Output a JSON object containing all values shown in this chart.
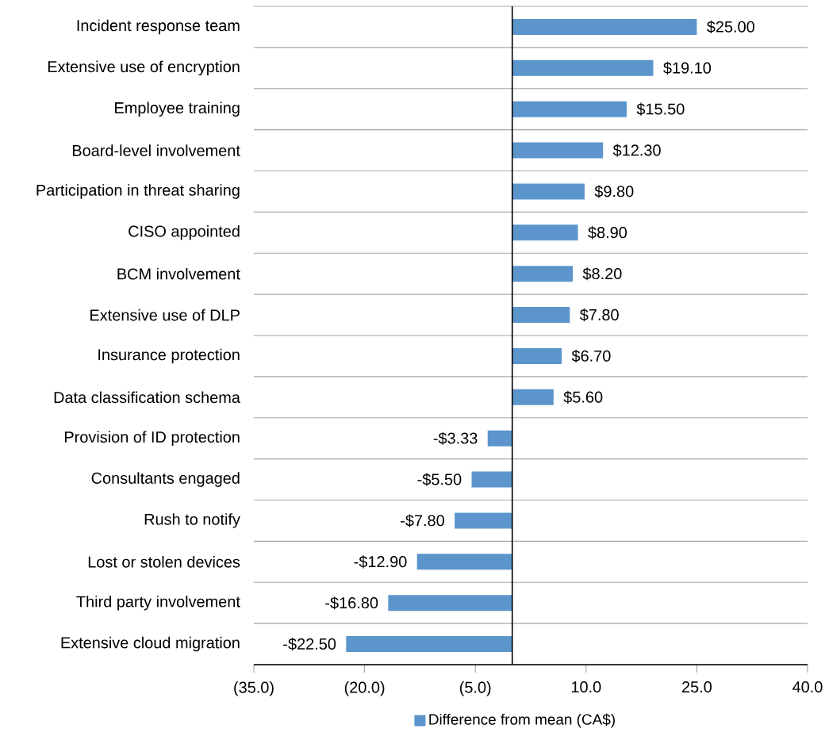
{
  "chart_data": {
    "type": "bar",
    "orientation": "horizontal",
    "categories": [
      "Incident response team",
      "Extensive use of encryption",
      "Employee training",
      "Board-level involvement",
      "Participation in threat sharing",
      "CISO appointed",
      "BCM involvement",
      "Extensive use of DLP",
      "Insurance protection",
      "Data classification schema",
      "Provision of ID protection",
      "Consultants engaged",
      "Rush to notify",
      "Lost or stolen devices",
      "Third party involvement",
      "Extensive cloud migration"
    ],
    "series": [
      {
        "name": "Difference from mean (CA$)",
        "color": "#5b95cc",
        "values": [
          25.0,
          19.1,
          15.5,
          12.3,
          9.8,
          8.9,
          8.2,
          7.8,
          6.7,
          5.6,
          -3.33,
          -5.5,
          -7.8,
          -12.9,
          -16.8,
          -22.5
        ],
        "value_labels": [
          "$25.00",
          "$19.10",
          "$15.50",
          "$12.30",
          "$9.80",
          "$8.90",
          "$8.20",
          "$7.80",
          "$6.70",
          "$5.60",
          "-$3.33",
          "-$5.50",
          "-$7.80",
          "-$12.90",
          "-$16.80",
          "-$22.50"
        ]
      }
    ],
    "xlim": [
      -35,
      40
    ],
    "xticks": [
      {
        "value": -35,
        "label": "(35.0)"
      },
      {
        "value": -20,
        "label": "(20.0)"
      },
      {
        "value": -5,
        "label": "(5.0)"
      },
      {
        "value": 10,
        "label": "10.0"
      },
      {
        "value": 25,
        "label": "25.0"
      },
      {
        "value": 40,
        "label": "40.0"
      }
    ],
    "grid": "y",
    "legend": "bottom"
  }
}
